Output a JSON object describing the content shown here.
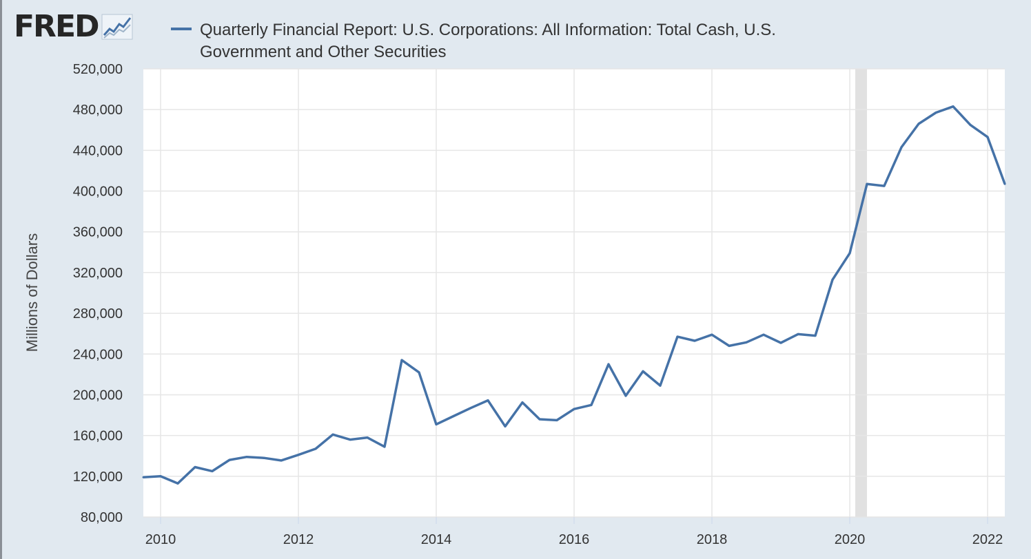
{
  "logo": {
    "text": "FRED",
    "icon": "trend-line-icon"
  },
  "chart_data": {
    "type": "line",
    "title": "Quarterly Financial Report: U.S. Corporations: All Information: Total Cash, U.S. Government and Other Securities",
    "ylabel": "Millions of Dollars",
    "xlabel": "",
    "xlim": [
      2009.75,
      2022.25
    ],
    "ylim": [
      80000,
      520000
    ],
    "yticks": [
      80000,
      120000,
      160000,
      200000,
      240000,
      280000,
      320000,
      360000,
      400000,
      440000,
      480000,
      520000
    ],
    "xticks": [
      2010,
      2012,
      2014,
      2016,
      2018,
      2020,
      2022
    ],
    "grid": true,
    "recession_band": {
      "start": 2020.08,
      "end": 2020.25
    },
    "series": [
      {
        "name": "Quarterly Financial Report: U.S. Corporations: All Information: Total Cash, U.S. Government and Other Securities",
        "color": "#4572a7",
        "x": [
          2009.75,
          2010.0,
          2010.25,
          2010.5,
          2010.75,
          2011.0,
          2011.25,
          2011.5,
          2011.75,
          2012.0,
          2012.25,
          2012.5,
          2012.75,
          2013.0,
          2013.25,
          2013.5,
          2013.75,
          2014.0,
          2014.25,
          2014.5,
          2014.75,
          2015.0,
          2015.25,
          2015.5,
          2015.75,
          2016.0,
          2016.25,
          2016.5,
          2016.75,
          2017.0,
          2017.25,
          2017.5,
          2017.75,
          2018.0,
          2018.25,
          2018.5,
          2018.75,
          2019.0,
          2019.25,
          2019.5,
          2019.75,
          2020.0,
          2020.25,
          2020.5,
          2020.75,
          2021.0,
          2021.25,
          2021.5,
          2021.75,
          2022.0,
          2022.25
        ],
        "values": [
          119000,
          120000,
          113000,
          129000,
          125000,
          136000,
          139000,
          138000,
          135500,
          141000,
          147000,
          161000,
          156000,
          158000,
          149000,
          234000,
          222000,
          171000,
          179000,
          187000,
          194500,
          169000,
          192500,
          176000,
          175000,
          186000,
          190000,
          230000,
          199000,
          223000,
          209000,
          257000,
          253000,
          259000,
          248000,
          251500,
          259000,
          251000,
          259500,
          258000,
          313000,
          339000,
          407000,
          405000,
          443000,
          466000,
          477000,
          483000,
          465000,
          453000,
          407000
        ]
      }
    ]
  }
}
